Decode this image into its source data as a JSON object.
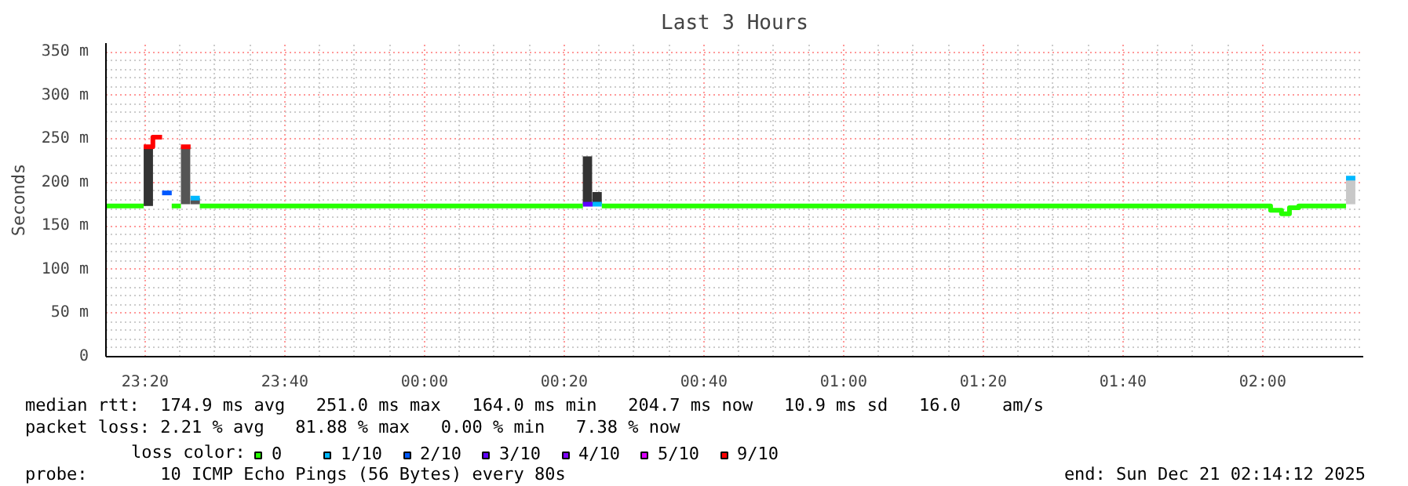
{
  "chart_data": {
    "type": "line",
    "title": "Last 3 Hours",
    "ylabel": "Seconds",
    "legend_title": "loss color:",
    "xlim": [
      "2025-12-20T23:14:24",
      "2025-12-21T02:14:24"
    ],
    "ylim": [
      0,
      360
    ],
    "xticks": [
      {
        "value": "2025-12-20T23:20",
        "label": "23:20"
      },
      {
        "value": "2025-12-20T23:40",
        "label": "23:40"
      },
      {
        "value": "2025-12-21T00:00",
        "label": "00:00"
      },
      {
        "value": "2025-12-21T00:20",
        "label": "00:20"
      },
      {
        "value": "2025-12-21T00:40",
        "label": "00:40"
      },
      {
        "value": "2025-12-21T01:00",
        "label": "01:00"
      },
      {
        "value": "2025-12-21T01:20",
        "label": "01:20"
      },
      {
        "value": "2025-12-21T01:40",
        "label": "01:40"
      },
      {
        "value": "2025-12-21T02:00",
        "label": "02:00"
      }
    ],
    "yticks": [
      0,
      {
        "value": 50,
        "label": "50 m"
      },
      {
        "value": 100,
        "label": "100 m"
      },
      {
        "value": 150,
        "label": "150 m"
      },
      {
        "value": 200,
        "label": "200 m"
      },
      {
        "value": 250,
        "label": "250 m"
      },
      {
        "value": 300,
        "label": "300 m"
      },
      {
        "value": 350,
        "label": "350 m"
      }
    ],
    "grid": true,
    "legend": "bottom",
    "series": [
      {
        "type": "bar",
        "x": [
          "2025-12-20T23:20:28",
          "2025-12-20T23:25:48",
          "2025-12-20T23:27:11",
          "2025-12-21T00:23:20",
          "2025-12-21T00:24:43",
          "2025-12-21T02:12:36"
        ],
        "base": [
          173,
          175,
          175,
          175,
          175,
          175
        ],
        "values": [
          68,
          66,
          7,
          55,
          14,
          30
        ],
        "colors": [
          "#333333",
          "#555555",
          "#555555",
          "#333333",
          "#333333",
          "#c8c8c8"
        ]
      },
      {
        "name": "0",
        "color": "#26ff00",
        "x": [
          "2025-12-20T23:14:24",
          "2025-12-20T23:19:48",
          null,
          "2025-12-20T23:23:49",
          "2025-12-20T23:25:08",
          null,
          "2025-12-20T23:27:50",
          "2025-12-21T00:22:41",
          null,
          "2025-12-21T00:25:23",
          "2025-12-21T02:01:08",
          "2025-12-21T02:01:08",
          "2025-12-21T02:02:42",
          "2025-12-21T02:02:42",
          "2025-12-21T02:03:50",
          "2025-12-21T02:03:50",
          "2025-12-21T02:05:10",
          "2025-12-21T02:05:10",
          "2025-12-21T02:11:56"
        ],
        "values": [
          173,
          173,
          null,
          173,
          173,
          null,
          173,
          173,
          null,
          173,
          173,
          168,
          168,
          164,
          164,
          171,
          171,
          173,
          173
        ]
      },
      {
        "name": "1/10",
        "color": "#00b8ff",
        "x": [
          "2025-12-20T23:26:31",
          "2025-12-20T23:27:50",
          null,
          "2025-12-21T00:24:04",
          "2025-12-21T00:25:23",
          null,
          "2025-12-21T02:11:56",
          "2025-12-21T02:13:16"
        ],
        "values": [
          182,
          182,
          null,
          175,
          175,
          null,
          205,
          205
        ]
      },
      {
        "name": "2/10",
        "color": "#0059ff",
        "x": [
          "2025-12-20T23:22:26",
          "2025-12-20T23:23:49"
        ],
        "values": [
          188,
          188
        ]
      },
      {
        "name": "3/10",
        "color": "#5e00ff",
        "x": [
          "2025-12-21T00:22:41",
          "2025-12-21T00:24:04"
        ],
        "values": [
          175,
          175
        ]
      },
      {
        "name": "4/10",
        "color": "#7e00ff"
      },
      {
        "name": "5/10",
        "color": "#dd00ff"
      },
      {
        "name": "9/10",
        "color": "#ff0000",
        "x": [
          "2025-12-20T23:19:48",
          "2025-12-20T23:21:07",
          "2025-12-20T23:21:07",
          "2025-12-20T23:22:26",
          null,
          "2025-12-20T23:25:08",
          "2025-12-20T23:26:31"
        ],
        "values": [
          241,
          241,
          252,
          252,
          null,
          241,
          241
        ]
      }
    ],
    "annotations": [
      "median rtt:  174.9 ms avg   251.0 ms max   164.0 ms min   204.7 ms now   10.9 ms sd   16.0    am/s",
      "packet loss: 2.21 % avg   81.88 % max   0.00 % min   7.38 % now",
      "probe:       10 ICMP Echo Pings (56 Bytes) every 80s",
      "end: Sun Dec 21 02:14:12 2025"
    ]
  }
}
